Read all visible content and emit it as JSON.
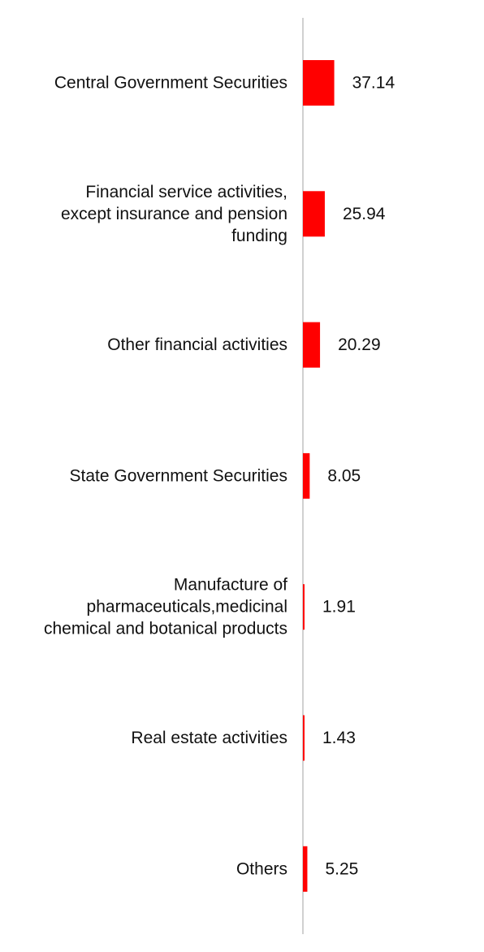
{
  "colors": {
    "bar": "#ff0000",
    "axis": "#d0d0d0",
    "text": "#111111",
    "background": "#ffffff"
  },
  "chart_data": {
    "type": "bar",
    "orientation": "horizontal",
    "categories": [
      [
        "Central Government Securities"
      ],
      [
        "Financial service activities,",
        "except insurance and pension",
        "funding"
      ],
      [
        "Other financial activities"
      ],
      [
        "State Government Securities"
      ],
      [
        "Manufacture of",
        "pharmaceuticals,medicinal",
        "chemical and botanical products"
      ],
      [
        "Real estate activities"
      ],
      [
        "Others"
      ]
    ],
    "values": [
      37.14,
      25.94,
      20.29,
      8.05,
      1.91,
      1.43,
      5.25
    ],
    "value_labels": [
      "37.14",
      "25.94",
      "20.29",
      "8.05",
      "1.91",
      "1.43",
      "5.25"
    ],
    "title": "",
    "xlabel": "",
    "ylabel": "",
    "xlim": [
      0,
      180
    ],
    "grid": false,
    "legend": "none",
    "data_labels": true
  }
}
